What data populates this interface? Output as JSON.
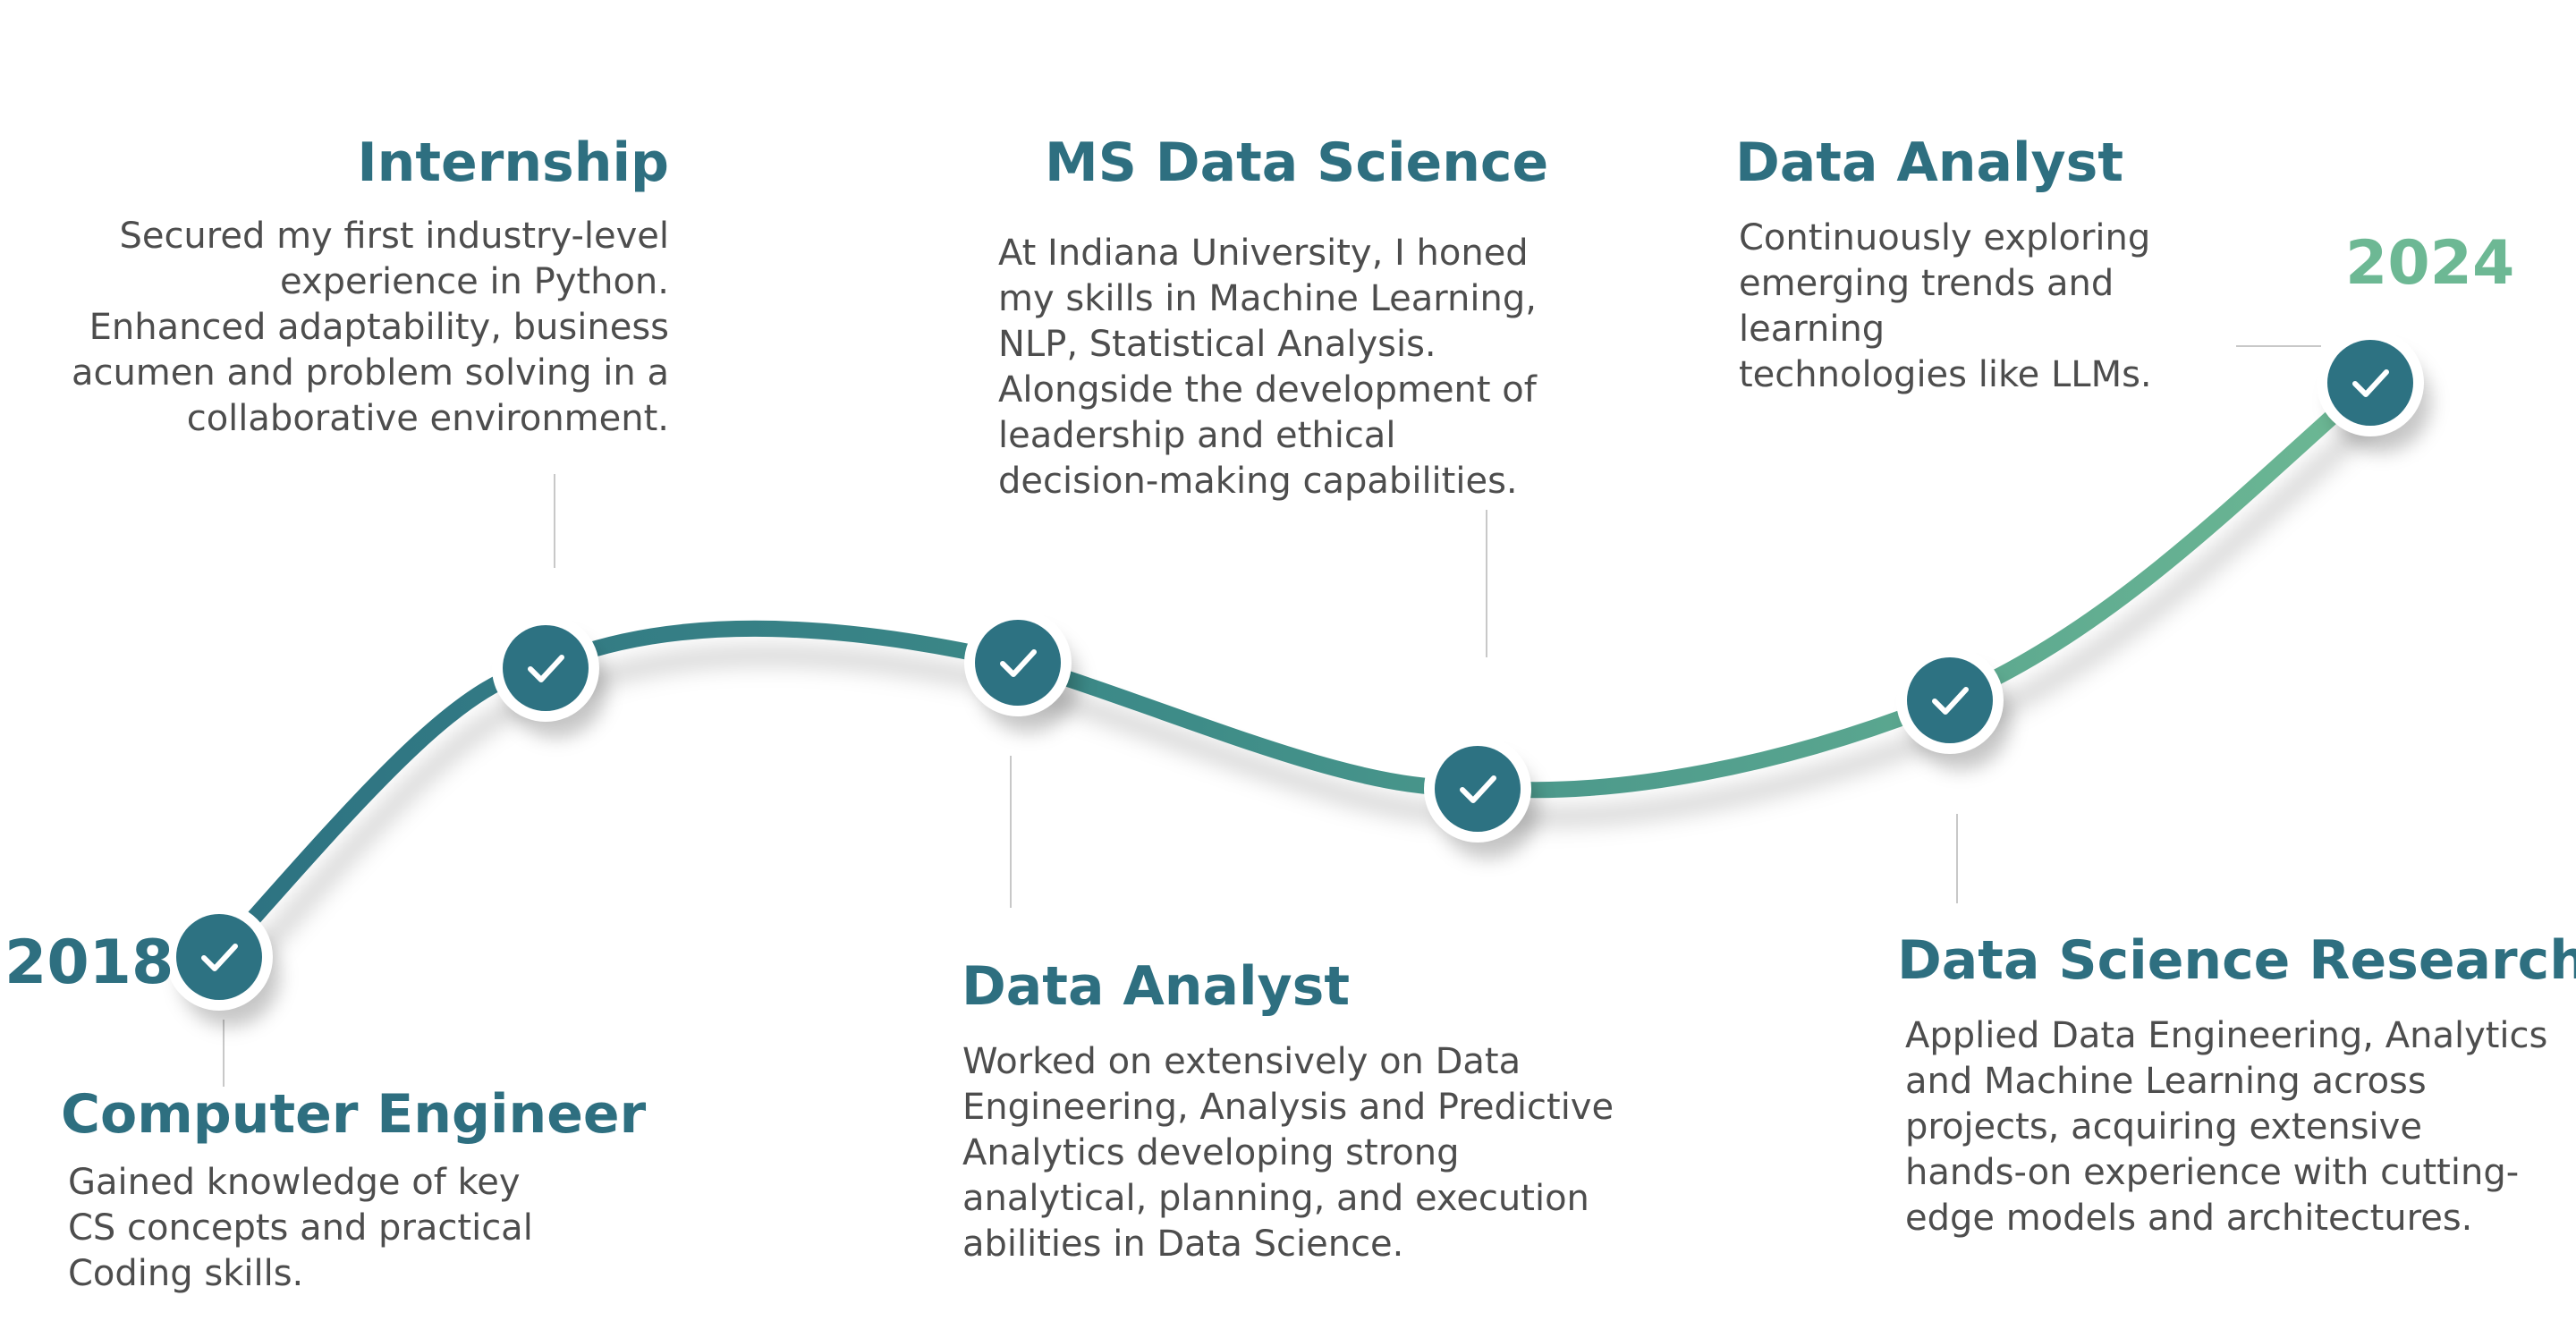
{
  "colors": {
    "dark_teal": "#2d7282",
    "mid_teal": "#3e8c88",
    "light_green": "#6db894",
    "heading_color": "#2e6f80",
    "year_start_color": "#2e6f80",
    "year_end_color": "#6db894",
    "body_text": "#4d4d4d",
    "connector_line": "#c8c8c8",
    "node_ring": "#ffffff",
    "check_mark": "#ffffff"
  },
  "icons": {
    "node": "check-icon"
  },
  "timeline": {
    "start_year": "2018",
    "end_year": "2024"
  },
  "milestones": [
    {
      "title": "Computer Engineer",
      "description": "Gained knowledge of key\nCS concepts and practical\nCoding skills."
    },
    {
      "title": "Internship",
      "description": "Secured my first industry-level\nexperience in Python.\nEnhanced adaptability, business\nacumen and problem solving in a\ncollaborative environment."
    },
    {
      "title": "MS Data Science",
      "description": "At Indiana University, I honed\nmy skills in Machine Learning,\nNLP, Statistical Analysis.\nAlongside the development of\nleadership and ethical\ndecision-making capabilities."
    },
    {
      "title": "Data Analyst",
      "description": "Worked on extensively on Data\nEngineering, Analysis and Predictive\nAnalytics developing strong\nanalytical, planning, and execution\nabilities in Data Science."
    },
    {
      "title": "Data Science Researcher",
      "description": "Applied Data Engineering, Analytics\nand Machine Learning across\nprojects, acquiring extensive\nhands-on experience with cutting-\nedge models and architectures."
    },
    {
      "title": "Data Analyst",
      "description": "Continuously exploring\nemerging trends and learning\ntechnologies like LLMs."
    }
  ]
}
